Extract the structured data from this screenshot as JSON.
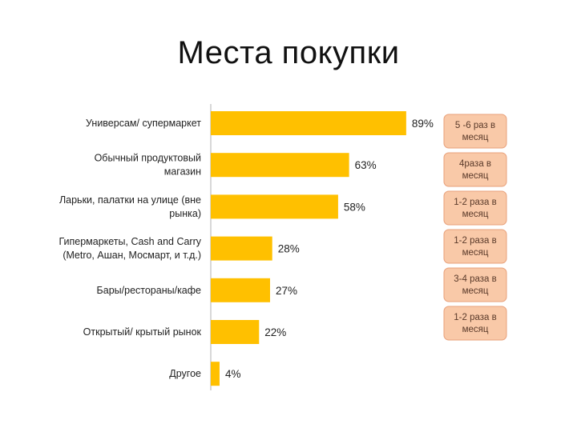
{
  "title": "Места покупки",
  "chart_data": {
    "type": "bar",
    "orientation": "horizontal",
    "categories": [
      "Универсам/ супермаркет",
      "Обычный продуктовый магазин",
      "Ларьки, палатки на улице (вне рынка)",
      "Гипермаркеты, Cash and Carry (Metro, Ашан, Мосмарт, и т.д.)",
      "Бары/рестораны/кафе",
      "Открытый/ крытый рынок",
      "Другое"
    ],
    "category_lines": [
      [
        "Универсам/ супермаркет"
      ],
      [
        "Обычный продуктовый",
        "магазин"
      ],
      [
        "Ларьки, палатки на улице (вне",
        "рынка)"
      ],
      [
        "Гипермаркеты, Cash and Carry",
        "(Metro, Ашан, Мосмарт, и т.д.)"
      ],
      [
        "Бары/рестораны/кафе"
      ],
      [
        "Открытый/ крытый рынок"
      ],
      [
        "Другое"
      ]
    ],
    "values": [
      89,
      63,
      58,
      28,
      27,
      22,
      4
    ],
    "value_labels": [
      "89%",
      "63%",
      "58%",
      "28%",
      "27%",
      "22%",
      "4%"
    ],
    "frequency_notes": [
      [
        "5 -6 раз в",
        "месяц"
      ],
      [
        "4раза в",
        "месяц"
      ],
      [
        "1-2 раза в",
        "месяц"
      ],
      [
        "1-2 раза в",
        "месяц"
      ],
      [
        "3-4 раза в",
        "месяц"
      ],
      [
        "1-2 раза в",
        "месяц"
      ]
    ],
    "xlim": [
      0,
      100
    ],
    "grid": false,
    "colors": {
      "bar": "#FFC000",
      "axis": "#BFBFBF",
      "note_fill": "#F9C9A8",
      "note_stroke": "#E8A07A"
    }
  }
}
